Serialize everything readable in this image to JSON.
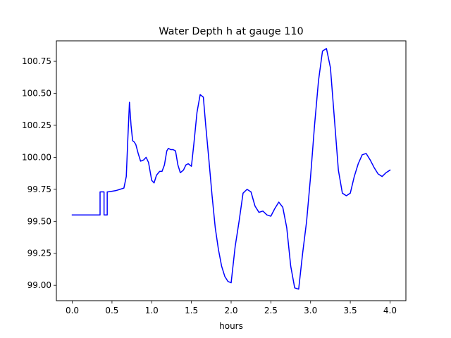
{
  "chart_data": {
    "type": "line",
    "title": "Water Depth h at gauge 110",
    "xlabel": "hours",
    "ylabel": "",
    "xlim": [
      -0.2,
      4.2
    ],
    "ylim": [
      98.88,
      100.91
    ],
    "xticks": [
      0.0,
      0.5,
      1.0,
      1.5,
      2.0,
      2.5,
      3.0,
      3.5,
      4.0
    ],
    "xtick_labels": [
      "0.0",
      "0.5",
      "1.0",
      "1.5",
      "2.0",
      "2.5",
      "3.0",
      "3.5",
      "4.0"
    ],
    "yticks": [
      99.0,
      99.25,
      99.5,
      99.75,
      100.0,
      100.25,
      100.5,
      100.75
    ],
    "ytick_labels": [
      "99.00",
      "99.25",
      "99.50",
      "99.75",
      "100.00",
      "100.25",
      "100.50",
      "100.75"
    ],
    "grid": false,
    "series": [
      {
        "color": "#0000ff",
        "x": [
          0.0,
          0.1,
          0.2,
          0.3,
          0.34,
          0.35,
          0.35,
          0.4,
          0.4,
          0.44,
          0.44,
          0.45,
          0.45,
          0.5,
          0.55,
          0.6,
          0.65,
          0.68,
          0.7,
          0.72,
          0.74,
          0.76,
          0.78,
          0.8,
          0.83,
          0.86,
          0.9,
          0.93,
          0.96,
          1.0,
          1.03,
          1.06,
          1.1,
          1.13,
          1.16,
          1.19,
          1.21,
          1.24,
          1.27,
          1.3,
          1.33,
          1.36,
          1.4,
          1.43,
          1.46,
          1.5,
          1.53,
          1.57,
          1.61,
          1.65,
          1.68,
          1.72,
          1.76,
          1.8,
          1.84,
          1.88,
          1.92,
          1.96,
          2.0,
          2.05,
          2.1,
          2.15,
          2.2,
          2.25,
          2.3,
          2.35,
          2.4,
          2.45,
          2.5,
          2.55,
          2.6,
          2.65,
          2.7,
          2.75,
          2.8,
          2.85,
          2.9,
          2.95,
          3.0,
          3.05,
          3.1,
          3.15,
          3.2,
          3.25,
          3.3,
          3.35,
          3.4,
          3.45,
          3.5,
          3.55,
          3.6,
          3.65,
          3.7,
          3.75,
          3.8,
          3.85,
          3.9,
          3.95,
          4.0
        ],
        "y": [
          99.55,
          99.55,
          99.55,
          99.55,
          99.55,
          99.55,
          99.73,
          99.73,
          99.55,
          99.55,
          99.73,
          99.73,
          99.73,
          99.735,
          99.74,
          99.75,
          99.76,
          99.85,
          100.15,
          100.43,
          100.25,
          100.13,
          100.12,
          100.1,
          100.03,
          99.97,
          99.98,
          100.0,
          99.96,
          99.82,
          99.8,
          99.86,
          99.89,
          99.89,
          99.94,
          100.05,
          100.07,
          100.06,
          100.06,
          100.05,
          99.94,
          99.88,
          99.9,
          99.94,
          99.95,
          99.93,
          100.1,
          100.35,
          100.49,
          100.47,
          100.25,
          99.98,
          99.7,
          99.45,
          99.28,
          99.15,
          99.07,
          99.03,
          99.02,
          99.3,
          99.5,
          99.72,
          99.75,
          99.73,
          99.62,
          99.57,
          99.58,
          99.55,
          99.54,
          99.6,
          99.65,
          99.61,
          99.45,
          99.15,
          98.98,
          98.97,
          99.25,
          99.5,
          99.85,
          100.25,
          100.6,
          100.83,
          100.85,
          100.7,
          100.3,
          99.9,
          99.72,
          99.7,
          99.72,
          99.85,
          99.95,
          100.02,
          100.03,
          99.98,
          99.92,
          99.87,
          99.85,
          99.88,
          99.9
        ]
      }
    ]
  }
}
